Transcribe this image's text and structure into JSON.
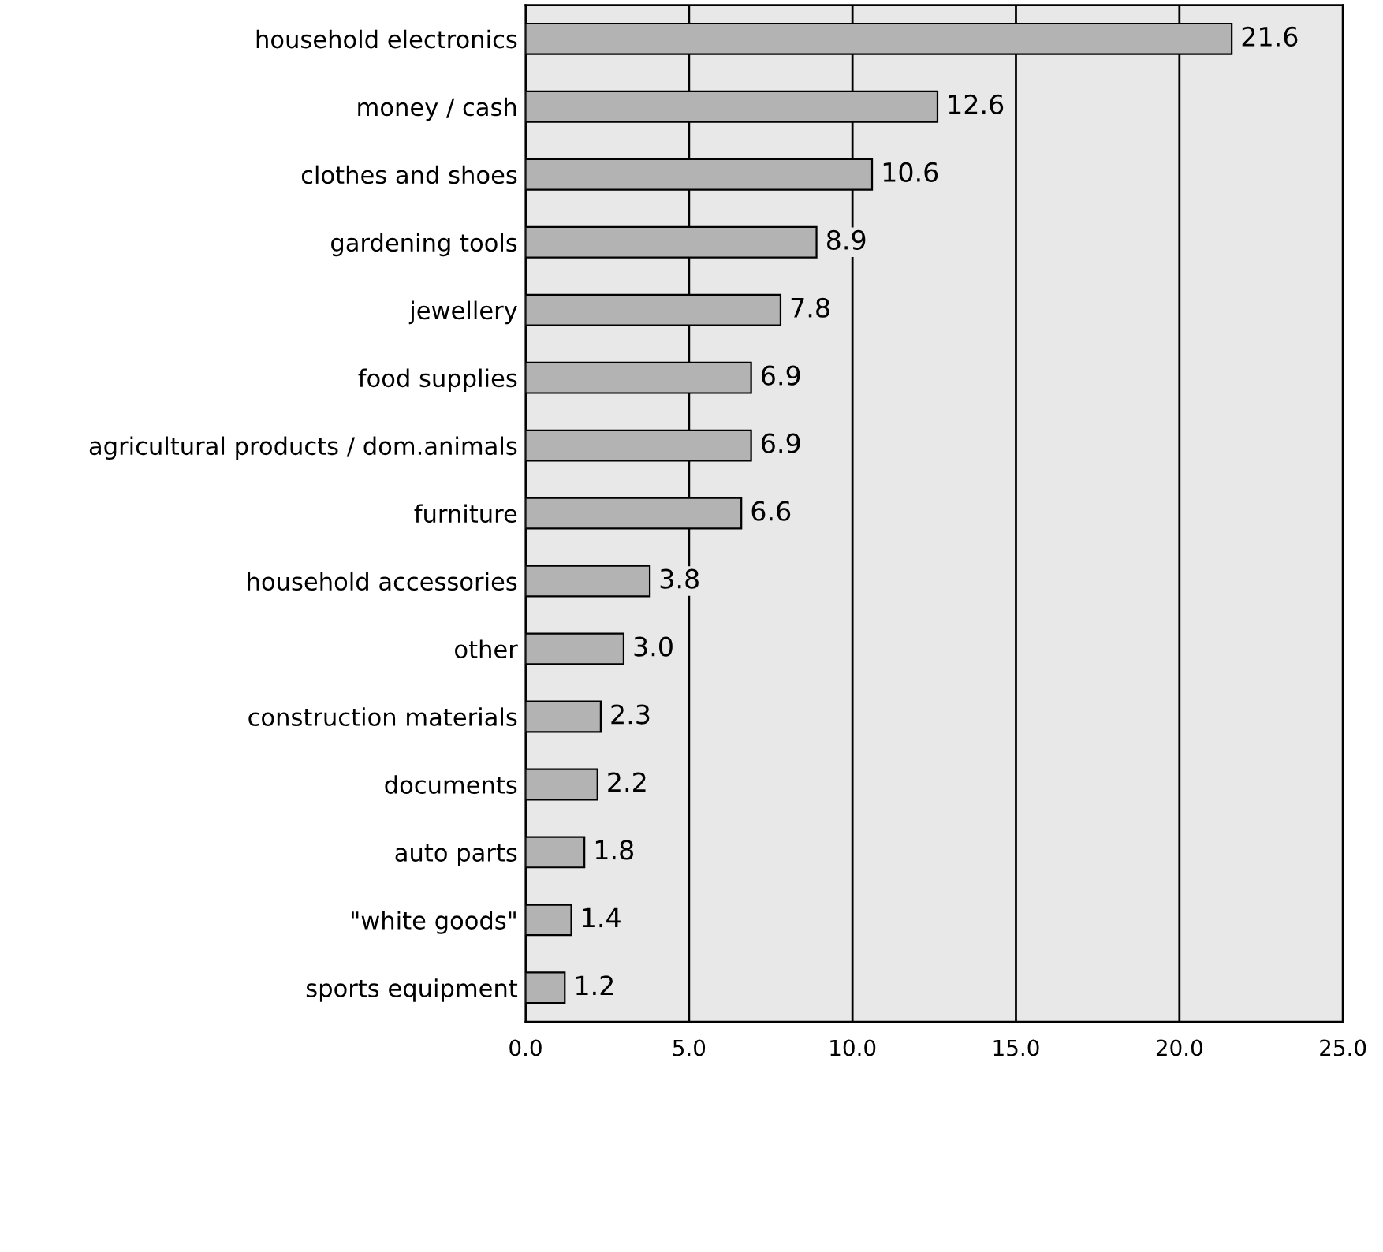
{
  "chart_data": {
    "type": "bar",
    "orientation": "horizontal",
    "categories": [
      "household electronics",
      "money / cash",
      "clothes and shoes",
      "gardening tools",
      "jewellery",
      "food supplies",
      "agricultural products / dom.animals",
      "furniture",
      "household accessories",
      "other",
      "construction materials",
      "documents",
      "auto parts",
      "\"white goods\"",
      "sports equipment"
    ],
    "values": [
      21.6,
      12.6,
      10.6,
      8.9,
      7.8,
      6.9,
      6.9,
      6.6,
      3.8,
      3.0,
      2.3,
      2.2,
      1.8,
      1.4,
      1.2
    ],
    "color": "#b3b3b3",
    "xlim": [
      0,
      25
    ],
    "xticks": [
      {
        "value": 0,
        "label": "0.0"
      },
      {
        "value": 5,
        "label": "5.0"
      },
      {
        "value": 10,
        "label": "10.0"
      },
      {
        "value": 15,
        "label": "15.0"
      },
      {
        "value": 20,
        "label": "20.0"
      },
      {
        "value": 25,
        "label": "25.0"
      }
    ],
    "value_labels": [
      "21.6",
      "12.6",
      "10.6",
      "8.9",
      "7.8",
      "6.9",
      "6.9",
      "6.6",
      "3.8",
      "3.0",
      "2.3",
      "2.2",
      "1.8",
      "1.4",
      "1.2"
    ],
    "grid": "x",
    "legend": false
  }
}
